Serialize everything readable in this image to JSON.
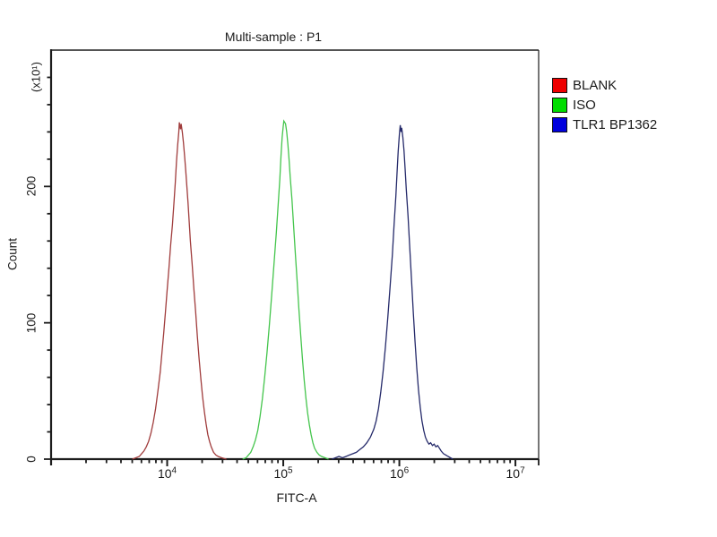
{
  "title": "Multi-sample : P1",
  "colors": {
    "background": "#ffffff",
    "axis": "#1c1c1c",
    "text": "#1a1a1a"
  },
  "chart_data": {
    "type": "line",
    "subtype": "flow-cytometry-histogram-overlay",
    "title": "Multi-sample : P1",
    "xlabel": "FITC-A",
    "ylabel": "Count",
    "y_unit_label": "(x10¹)",
    "x_scale": "log10",
    "x_range_log": [
      3,
      7.2
    ],
    "x_major_tick_exponents": [
      4,
      5,
      6,
      7
    ],
    "ylim": [
      0,
      300
    ],
    "y_major_ticks": [
      0,
      100,
      200
    ],
    "y_minor_tick_step": 20,
    "grid": false,
    "legend_position": "top-right-outside",
    "series": [
      {
        "name": "BLANK",
        "legend_color": "#ee0000",
        "line_color": "#a03c3c",
        "peak_x_approx": 12600,
        "peak_count_x10": 247,
        "points": [
          [
            3.7,
            0
          ],
          [
            3.73,
            1
          ],
          [
            3.76,
            2
          ],
          [
            3.78,
            4
          ],
          [
            3.8,
            6
          ],
          [
            3.82,
            9
          ],
          [
            3.84,
            13
          ],
          [
            3.86,
            19
          ],
          [
            3.88,
            27
          ],
          [
            3.9,
            37
          ],
          [
            3.92,
            50
          ],
          [
            3.94,
            64
          ],
          [
            3.955,
            78
          ],
          [
            3.97,
            92
          ],
          [
            3.985,
            108
          ],
          [
            4.0,
            124
          ],
          [
            4.015,
            140
          ],
          [
            4.03,
            157
          ],
          [
            4.045,
            172
          ],
          [
            4.06,
            190
          ],
          [
            4.07,
            203
          ],
          [
            4.08,
            218
          ],
          [
            4.09,
            230
          ],
          [
            4.1,
            240
          ],
          [
            4.105,
            247
          ],
          [
            4.115,
            242
          ],
          [
            4.12,
            246
          ],
          [
            4.13,
            240
          ],
          [
            4.14,
            232
          ],
          [
            4.15,
            222
          ],
          [
            4.16,
            212
          ],
          [
            4.17,
            200
          ],
          [
            4.18,
            188
          ],
          [
            4.19,
            174
          ],
          [
            4.2,
            160
          ],
          [
            4.215,
            143
          ],
          [
            4.23,
            125
          ],
          [
            4.245,
            108
          ],
          [
            4.26,
            90
          ],
          [
            4.275,
            74
          ],
          [
            4.29,
            59
          ],
          [
            4.305,
            46
          ],
          [
            4.32,
            35
          ],
          [
            4.335,
            26
          ],
          [
            4.35,
            18
          ],
          [
            4.365,
            13
          ],
          [
            4.38,
            9
          ],
          [
            4.4,
            5
          ],
          [
            4.42,
            3
          ],
          [
            4.44,
            2
          ],
          [
            4.47,
            1
          ],
          [
            4.51,
            0
          ]
        ]
      },
      {
        "name": "ISO",
        "legend_color": "#00dd00",
        "line_color": "#44c54c",
        "peak_x_approx": 100000,
        "peak_count_x10": 248,
        "points": [
          [
            4.65,
            0
          ],
          [
            4.68,
            1
          ],
          [
            4.7,
            3
          ],
          [
            4.72,
            5
          ],
          [
            4.74,
            9
          ],
          [
            4.76,
            14
          ],
          [
            4.78,
            21
          ],
          [
            4.8,
            31
          ],
          [
            4.82,
            44
          ],
          [
            4.84,
            60
          ],
          [
            4.86,
            78
          ],
          [
            4.88,
            98
          ],
          [
            4.9,
            120
          ],
          [
            4.92,
            143
          ],
          [
            4.94,
            166
          ],
          [
            4.955,
            185
          ],
          [
            4.97,
            205
          ],
          [
            4.98,
            222
          ],
          [
            4.99,
            236
          ],
          [
            5.0,
            244
          ],
          [
            5.005,
            248
          ],
          [
            5.02,
            246
          ],
          [
            5.03,
            240
          ],
          [
            5.04,
            231
          ],
          [
            5.05,
            220
          ],
          [
            5.06,
            207
          ],
          [
            5.075,
            190
          ],
          [
            5.09,
            170
          ],
          [
            5.105,
            150
          ],
          [
            5.12,
            130
          ],
          [
            5.135,
            110
          ],
          [
            5.15,
            91
          ],
          [
            5.165,
            74
          ],
          [
            5.18,
            58
          ],
          [
            5.195,
            45
          ],
          [
            5.21,
            34
          ],
          [
            5.225,
            25
          ],
          [
            5.24,
            18
          ],
          [
            5.255,
            12
          ],
          [
            5.27,
            8
          ],
          [
            5.29,
            5
          ],
          [
            5.31,
            3
          ],
          [
            5.33,
            2
          ],
          [
            5.36,
            1
          ],
          [
            5.39,
            0
          ]
        ]
      },
      {
        "name": "TLR1 BP1362",
        "legend_color": "#0000dd",
        "line_color": "#252a6a",
        "peak_x_approx": 1000000,
        "peak_count_x10": 245,
        "points": [
          [
            5.42,
            0
          ],
          [
            5.45,
            1
          ],
          [
            5.48,
            2
          ],
          [
            5.51,
            1
          ],
          [
            5.54,
            2
          ],
          [
            5.57,
            3
          ],
          [
            5.6,
            4
          ],
          [
            5.63,
            5
          ],
          [
            5.66,
            7
          ],
          [
            5.69,
            9
          ],
          [
            5.72,
            12
          ],
          [
            5.75,
            16
          ],
          [
            5.78,
            22
          ],
          [
            5.8,
            28
          ],
          [
            5.82,
            37
          ],
          [
            5.84,
            49
          ],
          [
            5.86,
            64
          ],
          [
            5.88,
            82
          ],
          [
            5.9,
            103
          ],
          [
            5.92,
            126
          ],
          [
            5.94,
            150
          ],
          [
            5.955,
            172
          ],
          [
            5.97,
            193
          ],
          [
            5.98,
            210
          ],
          [
            5.99,
            226
          ],
          [
            6.0,
            238
          ],
          [
            6.008,
            245
          ],
          [
            6.015,
            240
          ],
          [
            6.02,
            243
          ],
          [
            6.03,
            236
          ],
          [
            6.04,
            226
          ],
          [
            6.05,
            213
          ],
          [
            6.06,
            198
          ],
          [
            6.075,
            178
          ],
          [
            6.09,
            155
          ],
          [
            6.105,
            131
          ],
          [
            6.12,
            108
          ],
          [
            6.135,
            86
          ],
          [
            6.15,
            67
          ],
          [
            6.165,
            51
          ],
          [
            6.18,
            38
          ],
          [
            6.195,
            28
          ],
          [
            6.21,
            21
          ],
          [
            6.225,
            16
          ],
          [
            6.24,
            13
          ],
          [
            6.255,
            11
          ],
          [
            6.27,
            12
          ],
          [
            6.285,
            10
          ],
          [
            6.3,
            11
          ],
          [
            6.315,
            9
          ],
          [
            6.33,
            10
          ],
          [
            6.345,
            8
          ],
          [
            6.36,
            6
          ],
          [
            6.38,
            4
          ],
          [
            6.4,
            3
          ],
          [
            6.42,
            2
          ],
          [
            6.44,
            1
          ],
          [
            6.46,
            0
          ]
        ]
      }
    ]
  }
}
